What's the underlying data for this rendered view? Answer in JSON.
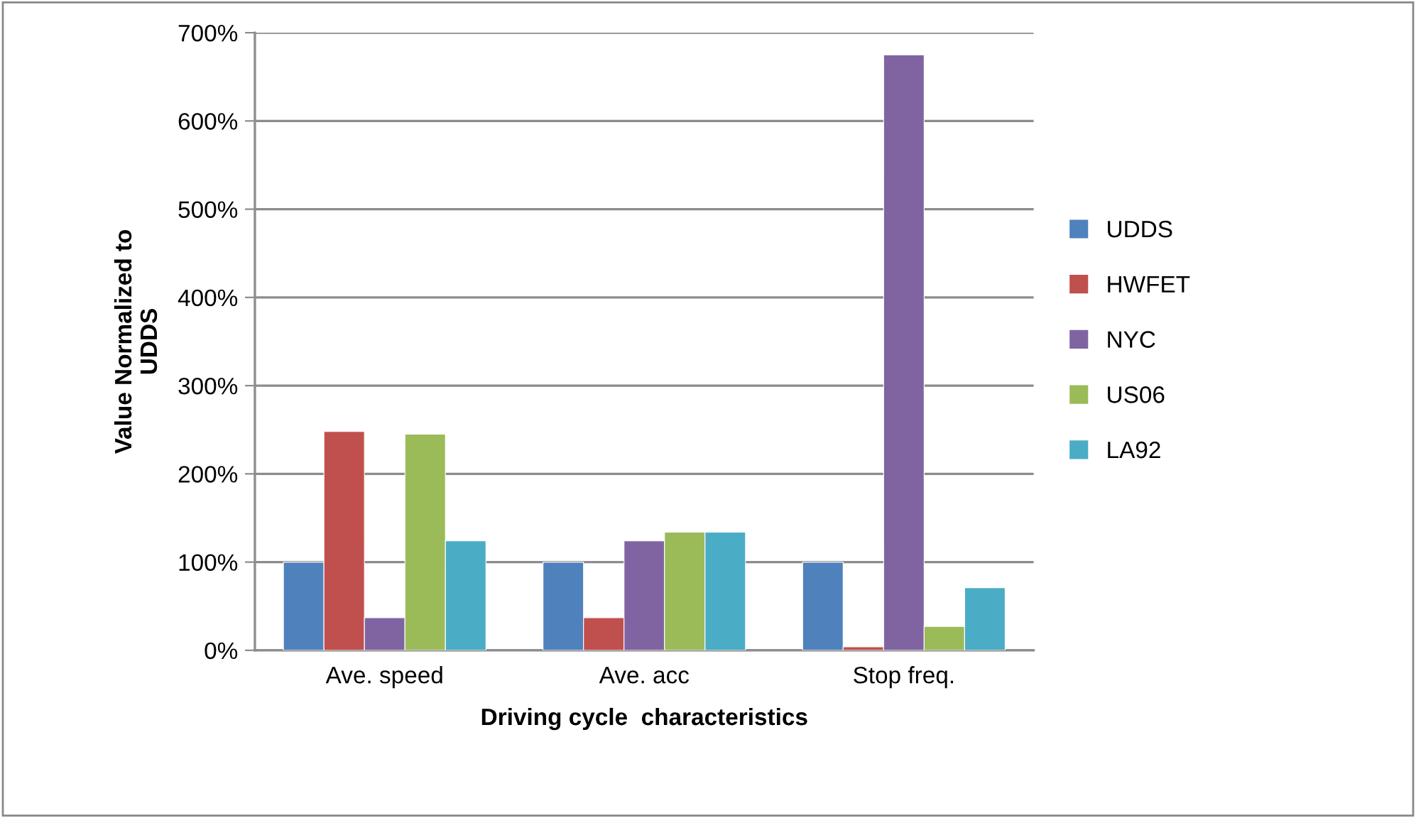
{
  "chart_data": {
    "type": "bar",
    "xlabel": "Driving cycle  characteristics",
    "ylabel": "Value Normalized to\nUDDS",
    "categories": [
      "Ave. speed",
      "Ave. acc",
      "Stop freq."
    ],
    "series": [
      {
        "name": "UDDS",
        "color": "#4f81bd",
        "values": [
          100,
          100,
          100
        ]
      },
      {
        "name": "HWFET",
        "color": "#c0504d",
        "values": [
          248,
          37,
          4
        ]
      },
      {
        "name": "NYC",
        "color": "#8064a2",
        "values": [
          37,
          124,
          675
        ]
      },
      {
        "name": "US06",
        "color": "#9bbb59",
        "values": [
          245,
          134,
          27
        ]
      },
      {
        "name": "LA92",
        "color": "#4bacc6",
        "values": [
          124,
          134,
          71
        ]
      }
    ],
    "ylim": [
      0,
      700
    ],
    "yticks": [
      {
        "value": 0,
        "label": "0%"
      },
      {
        "value": 100,
        "label": "100%"
      },
      {
        "value": 200,
        "label": "200%"
      },
      {
        "value": 300,
        "label": "300%"
      },
      {
        "value": 400,
        "label": "400%"
      },
      {
        "value": 500,
        "label": "500%"
      },
      {
        "value": 600,
        "label": "600%"
      },
      {
        "value": 700,
        "label": "700%"
      }
    ],
    "grid": "y",
    "legend": "right"
  }
}
